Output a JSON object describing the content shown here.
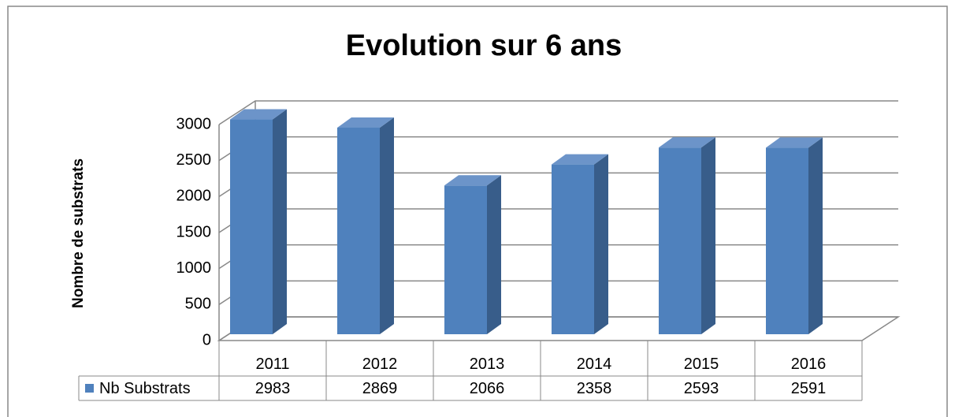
{
  "chart_data": {
    "type": "bar3d",
    "title": "Evolution sur 6 ans",
    "y_label": "Nombre de substrats",
    "categories": [
      "2011",
      "2012",
      "2013",
      "2014",
      "2015",
      "2016"
    ],
    "series": [
      {
        "name": "Nb Substrats",
        "color": "#4f81bd",
        "values": [
          2983,
          2869,
          2066,
          2358,
          2593,
          2591
        ]
      }
    ],
    "ylim": [
      0,
      3000
    ],
    "yticks": [
      0,
      500,
      1000,
      1500,
      2000,
      2500,
      3000
    ],
    "grid": true,
    "data_table": true
  }
}
